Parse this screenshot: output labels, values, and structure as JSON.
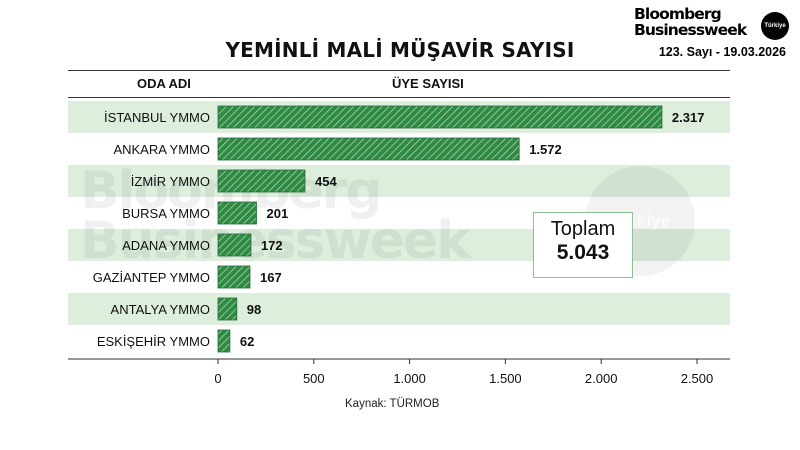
{
  "brand": {
    "line1": "Bloomberg",
    "line2": "Businessweek",
    "badge": "Türkiye"
  },
  "issue": "123. Sayı - 19.03.2026",
  "title": "YEMİNLİ MALİ MÜŞAVİR SAYISI",
  "column_headers": {
    "left": "ODA ADI",
    "right": "ÜYE SAYISI"
  },
  "total": {
    "label": "Toplam",
    "value": "5.043"
  },
  "source": "Kaynak: TÜRMOB",
  "watermark": {
    "line1": "Bloomberg",
    "line2": "Businessweek",
    "circle": "Türkiye"
  },
  "colors": {
    "bar": "#2f8a43",
    "bar_stripe": "#bfe3c6",
    "row_band": "#ddeedd",
    "box_border": "#8fbf98"
  },
  "chart_data": {
    "type": "bar",
    "orientation": "horizontal",
    "title": "YEMİNLİ MALİ MÜŞAVİR SAYISI",
    "categories": [
      "İSTANBUL YMMO",
      "ANKARA YMMO",
      "İZMİR YMMO",
      "BURSA YMMO",
      "ADANA YMMO",
      "GAZİANTEP YMMO",
      "ANTALYA YMMO",
      "ESKİŞEHİR YMMO"
    ],
    "values": [
      2317,
      1572,
      454,
      201,
      172,
      167,
      98,
      62
    ],
    "value_labels": [
      "2.317",
      "1.572",
      "454",
      "201",
      "172",
      "167",
      "98",
      "62"
    ],
    "xlim": [
      0,
      2500
    ],
    "xticks": [
      0,
      500,
      1000,
      1500,
      2000,
      2500
    ],
    "xtick_labels": [
      "0",
      "500",
      "1.000",
      "1.500",
      "2.000",
      "2.500"
    ],
    "grid": false,
    "legend": "none"
  }
}
